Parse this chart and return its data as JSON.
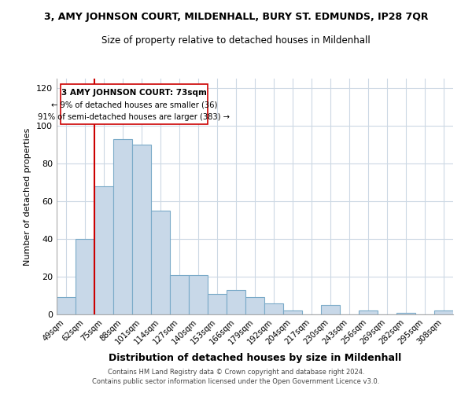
{
  "title": "3, AMY JOHNSON COURT, MILDENHALL, BURY ST. EDMUNDS, IP28 7QR",
  "subtitle": "Size of property relative to detached houses in Mildenhall",
  "xlabel": "Distribution of detached houses by size in Mildenhall",
  "ylabel": "Number of detached properties",
  "bar_labels": [
    "49sqm",
    "62sqm",
    "75sqm",
    "88sqm",
    "101sqm",
    "114sqm",
    "127sqm",
    "140sqm",
    "153sqm",
    "166sqm",
    "179sqm",
    "192sqm",
    "204sqm",
    "217sqm",
    "230sqm",
    "243sqm",
    "256sqm",
    "269sqm",
    "282sqm",
    "295sqm",
    "308sqm"
  ],
  "bar_heights": [
    9,
    40,
    68,
    93,
    90,
    55,
    21,
    21,
    11,
    13,
    9,
    6,
    2,
    0,
    5,
    0,
    2,
    0,
    1,
    0,
    2
  ],
  "bar_color": "#c8d8e8",
  "bar_edge_color": "#7aaac8",
  "property_line_label": "3 AMY JOHNSON COURT: 73sqm",
  "annotation_line1": "← 9% of detached houses are smaller (36)",
  "annotation_line2": "91% of semi-detached houses are larger (383) →",
  "vline_color": "#cc0000",
  "box_edge_color": "#cc0000",
  "ylim": [
    0,
    125
  ],
  "yticks": [
    0,
    20,
    40,
    60,
    80,
    100,
    120
  ],
  "footer1": "Contains HM Land Registry data © Crown copyright and database right 2024.",
  "footer2": "Contains public sector information licensed under the Open Government Licence v3.0.",
  "background_color": "#ffffff",
  "grid_color": "#ccd8e4"
}
